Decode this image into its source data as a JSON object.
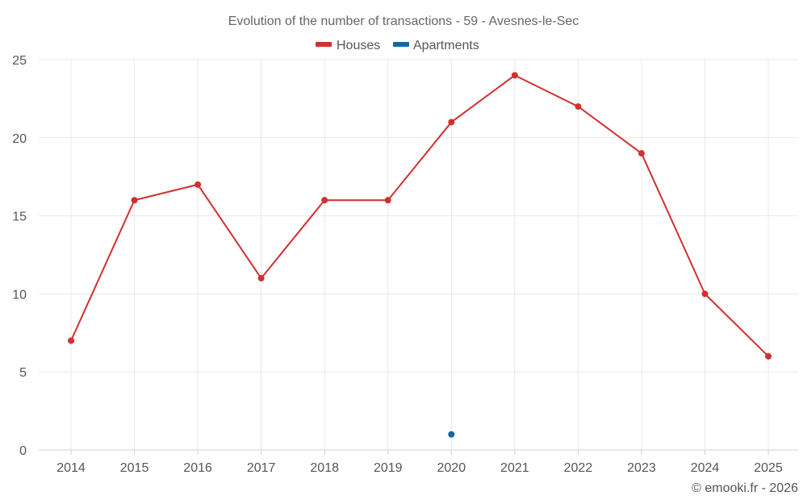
{
  "chart_data": {
    "type": "line",
    "title": "Evolution of the number of transactions - 59 - Avesnes-le-Sec",
    "xlabel": "",
    "ylabel": "",
    "categories": [
      "2014",
      "2015",
      "2016",
      "2017",
      "2018",
      "2019",
      "2020",
      "2021",
      "2022",
      "2023",
      "2024",
      "2025"
    ],
    "ylim": [
      0,
      25
    ],
    "yticks": [
      0,
      5,
      10,
      15,
      20,
      25
    ],
    "grid": true,
    "legend": "top-center",
    "series": [
      {
        "name": "Houses",
        "color": "#d32f2f",
        "values": [
          7,
          16,
          17,
          11,
          16,
          16,
          21,
          24,
          22,
          19,
          10,
          6
        ]
      },
      {
        "name": "Apartments",
        "color": "#1565a0",
        "values": [
          null,
          null,
          null,
          null,
          null,
          null,
          1,
          null,
          null,
          null,
          null,
          null
        ]
      }
    ]
  },
  "credit": "© emooki.fr - 2026"
}
